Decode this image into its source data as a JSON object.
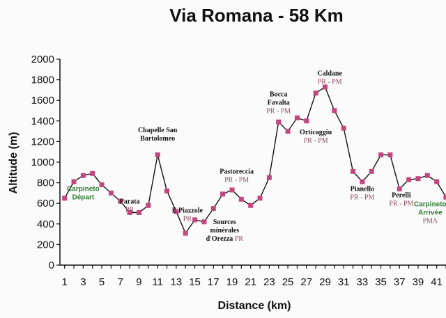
{
  "chart_data": {
    "type": "line",
    "title": "Via Romana - 58 Km",
    "xlabel": "Distance (km)",
    "ylabel": "Altitude (m)",
    "ylim": [
      0,
      2000
    ],
    "yticks": [
      0,
      200,
      400,
      600,
      800,
      1000,
      1200,
      1400,
      1600,
      1800,
      2000
    ],
    "xticks": [
      1,
      3,
      5,
      7,
      9,
      11,
      13,
      15,
      17,
      19,
      21,
      23,
      25,
      27,
      29,
      31,
      33,
      35,
      37,
      39,
      41
    ],
    "grid": false,
    "marker_color": "#c2477c",
    "line_color": "#111111",
    "series": [
      {
        "x": [
          1,
          2,
          3,
          4,
          5,
          6,
          7,
          8,
          9,
          10,
          11,
          12,
          13,
          14,
          15,
          16,
          17,
          18,
          19,
          20,
          21,
          22,
          23,
          24,
          25,
          26,
          27,
          28,
          29,
          30,
          31,
          32,
          33,
          34,
          35,
          36,
          37,
          38,
          39,
          40,
          41,
          42
        ],
        "values": [
          650,
          810,
          870,
          890,
          780,
          700,
          620,
          510,
          510,
          580,
          1070,
          720,
          520,
          310,
          440,
          420,
          550,
          690,
          730,
          640,
          580,
          650,
          850,
          1390,
          1300,
          1430,
          1400,
          1670,
          1730,
          1500,
          1330,
          910,
          810,
          910,
          1070,
          1070,
          740,
          830,
          840,
          870,
          810,
          660
        ]
      }
    ],
    "annotations": [
      {
        "x": 3,
        "y": 720,
        "lines": [
          {
            "text": "Carpineto",
            "style": "green"
          },
          {
            "text": "Départ",
            "style": "green"
          }
        ]
      },
      {
        "x": 8,
        "y": 598,
        "lines": [
          {
            "text": "Parata",
            "style": "bold"
          },
          {
            "text": "PR",
            "style": "pm"
          }
        ]
      },
      {
        "x": 11,
        "y": 1290,
        "lines": [
          {
            "text": "Chapelle San",
            "style": "bold"
          },
          {
            "text": "Bartolomeo",
            "style": "bold"
          }
        ]
      },
      {
        "x": 14.2,
        "y": 510,
        "lines": [
          {
            "text": "E Piazzole",
            "style": "bold"
          },
          {
            "text": "PR",
            "style": "pm"
          }
        ]
      },
      {
        "x": 18.2,
        "y": 400,
        "lines": [
          {
            "text": "Sources",
            "style": "bold"
          },
          {
            "text": "minérales",
            "style": "bold"
          },
          {
            "text": "d'Orezza PR",
            "style": "mixed"
          }
        ]
      },
      {
        "x": 19.5,
        "y": 890,
        "lines": [
          {
            "text": "Pastoreccia",
            "style": "bold"
          },
          {
            "text": "PR - PM",
            "style": "pm"
          }
        ]
      },
      {
        "x": 24,
        "y": 1640,
        "lines": [
          {
            "text": "Bocca",
            "style": "bold"
          },
          {
            "text": "Favalta",
            "style": "bold"
          },
          {
            "text": "PR - PM",
            "style": "pm"
          }
        ]
      },
      {
        "x": 29.5,
        "y": 1840,
        "lines": [
          {
            "text": "Caldane",
            "style": "bold"
          },
          {
            "text": "PR - PM",
            "style": "pm"
          }
        ]
      },
      {
        "x": 28,
        "y": 1270,
        "lines": [
          {
            "text": "Orticaggiu",
            "style": "bold"
          },
          {
            "text": "PR - PM",
            "style": "pm"
          }
        ]
      },
      {
        "x": 33,
        "y": 718,
        "lines": [
          {
            "text": "Pianello",
            "style": "bold"
          },
          {
            "text": "PR - PM",
            "style": "pm"
          }
        ]
      },
      {
        "x": 37.2,
        "y": 660,
        "lines": [
          {
            "text": "Perelli",
            "style": "bold"
          },
          {
            "text": "PR - PM",
            "style": "pm"
          }
        ]
      },
      {
        "x": 40.3,
        "y": 572,
        "lines": [
          {
            "text": "Carpineto",
            "style": "green"
          },
          {
            "text": "Arrivée",
            "style": "green"
          },
          {
            "text": "PMA",
            "style": "pm"
          }
        ]
      }
    ]
  }
}
